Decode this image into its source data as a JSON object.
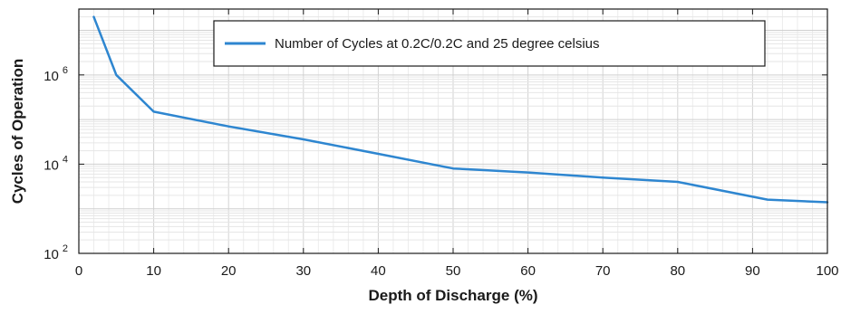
{
  "chart_data": {
    "type": "line",
    "xlabel": "Depth of Discharge (%)",
    "ylabel": "Cycles of Operation",
    "xlim": [
      0,
      100
    ],
    "ylim": [
      100,
      30000000
    ],
    "yscale": "log",
    "x_ticks": [
      0,
      10,
      20,
      30,
      40,
      50,
      60,
      70,
      80,
      90,
      100
    ],
    "y_ticks": [
      {
        "value": 100,
        "base": "10",
        "exp": "2"
      },
      {
        "value": 10000,
        "base": "10",
        "exp": "4"
      },
      {
        "value": 1000000,
        "base": "10",
        "exp": "6"
      }
    ],
    "grid": true,
    "legend_position": "top-right",
    "series": [
      {
        "name": "Number of Cycles at 0.2C/0.2C and 25 degree celsius",
        "color": "#2e86d0",
        "x": [
          2,
          5,
          10,
          20,
          30,
          40,
          50,
          60,
          70,
          80,
          92,
          100
        ],
        "y": [
          20000000,
          1000000,
          150000,
          70000,
          36000,
          17000,
          8000,
          6500,
          5000,
          4000,
          1600,
          1400
        ]
      }
    ]
  }
}
